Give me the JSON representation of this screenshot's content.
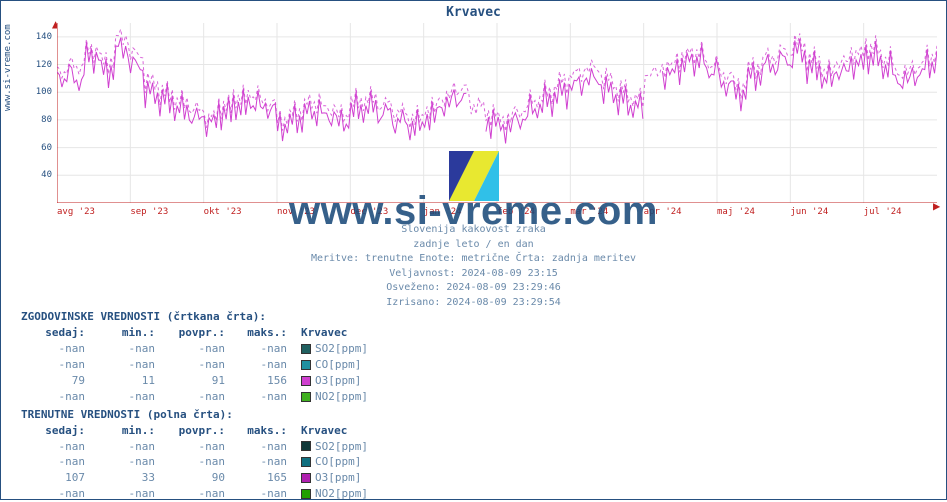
{
  "title": "Krvavec",
  "watermark": "www.si-vreme.com",
  "yaxis_label": "www.si-vreme.com",
  "subtitle": {
    "line1": "Slovenija kakovost zraka",
    "line2": "zadnje leto / en dan",
    "line3": "Meritve: trenutne  Enote: metrične  Črta: zadnja meritev",
    "line4": "Veljavnost: 2024-08-09 23:15",
    "line5": "Osveženo: 2024-08-09 23:29:46",
    "line6": "Izrisano: 2024-08-09 23:29:54"
  },
  "chart": {
    "type": "line",
    "background_color": "#ffffff",
    "grid_color": "#e6e6e6",
    "axis_color": "#c02020",
    "ylim": [
      20,
      150
    ],
    "yticks": [
      40,
      60,
      80,
      100,
      120,
      140
    ],
    "xticks": [
      "avg '23",
      "sep '23",
      "okt '23",
      "nov '23",
      "dec '23",
      "jan '24",
      "feb '24",
      "mar '24",
      "apr '24",
      "maj '24",
      "jun '24",
      "jul '24"
    ],
    "series_solid": {
      "color": "#d040d0",
      "linewidth": 1,
      "values": [
        110,
        108,
        125,
        115,
        132,
        120,
        100,
        95,
        88,
        82,
        78,
        85,
        90,
        92,
        88,
        75,
        80,
        85,
        82,
        78,
        88,
        90,
        86,
        80,
        76,
        82,
        90,
        95,
        85,
        78,
        74,
        80,
        88,
        94,
        100,
        106,
        110,
        102,
        95,
        90,
        108,
        112,
        118,
        122,
        115,
        105,
        98,
        112,
        120,
        124,
        130,
        118,
        110,
        115,
        120,
        125,
        118,
        108,
        112,
        120
      ],
      "nan_gaps": [
        [
          28,
          29
        ],
        [
          40,
          41
        ]
      ]
    },
    "series_dash": {
      "color": "#d040d0",
      "linewidth": 1,
      "dash": "3,3",
      "values": [
        115,
        118,
        130,
        122,
        140,
        128,
        108,
        100,
        94,
        88,
        82,
        90,
        96,
        98,
        92,
        80,
        86,
        92,
        88,
        84,
        94,
        96,
        92,
        86,
        82,
        88,
        96,
        102,
        90,
        84,
        80,
        86,
        94,
        100,
        108,
        114,
        118,
        110,
        102,
        96,
        114,
        118,
        124,
        128,
        120,
        112,
        104,
        118,
        126,
        130,
        136,
        124,
        116,
        122,
        128,
        132,
        124,
        114,
        118,
        126
      ]
    }
  },
  "tables": {
    "hist_title": "ZGODOVINSKE VREDNOSTI (črtkana črta):",
    "curr_title": "TRENUTNE VREDNOSTI (polna črta):",
    "headers": [
      "sedaj:",
      "min.:",
      "povpr.:",
      "maks.:",
      "Krvavec"
    ],
    "hist_rows": [
      {
        "v": [
          "-nan",
          "-nan",
          "-nan",
          "-nan"
        ],
        "label": "SO2[ppm]",
        "color": "#206060"
      },
      {
        "v": [
          "-nan",
          "-nan",
          "-nan",
          "-nan"
        ],
        "label": "CO[ppm]",
        "color": "#2090a0"
      },
      {
        "v": [
          "79",
          "11",
          "91",
          "156"
        ],
        "label": "O3[ppm]",
        "color": "#d040d0"
      },
      {
        "v": [
          "-nan",
          "-nan",
          "-nan",
          "-nan"
        ],
        "label": "NO2[ppm]",
        "color": "#40b020"
      }
    ],
    "curr_rows": [
      {
        "v": [
          "-nan",
          "-nan",
          "-nan",
          "-nan"
        ],
        "label": "SO2[ppm]",
        "color": "#103838"
      },
      {
        "v": [
          "-nan",
          "-nan",
          "-nan",
          "-nan"
        ],
        "label": "CO[ppm]",
        "color": "#107080"
      },
      {
        "v": [
          "107",
          "33",
          "90",
          "165"
        ],
        "label": "O3[ppm]",
        "color": "#b020b0"
      },
      {
        "v": [
          "-nan",
          "-nan",
          "-nan",
          "-nan"
        ],
        "label": "NO2[ppm]",
        "color": "#20a000"
      }
    ]
  }
}
